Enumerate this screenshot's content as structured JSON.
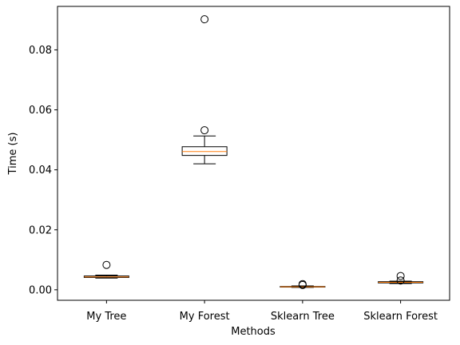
{
  "chart_data": {
    "type": "boxplot",
    "title": "",
    "xlabel": "Methods",
    "ylabel": "Time (s)",
    "ylim": [
      -0.0035,
      0.0945
    ],
    "yticks": [
      0.0,
      0.02,
      0.04,
      0.06,
      0.08
    ],
    "ytick_labels": [
      "0.00",
      "0.02",
      "0.04",
      "0.06",
      "0.08"
    ],
    "grid": false,
    "categories": [
      "My Tree",
      "My Forest",
      "Sklearn Tree",
      "Sklearn Forest"
    ],
    "boxes": [
      {
        "name": "My Tree",
        "whisker_low": 0.0039,
        "q1": 0.0041,
        "median": 0.0043,
        "q3": 0.0046,
        "whisker_high": 0.0049,
        "outliers": [
          0.0083
        ]
      },
      {
        "name": "My Forest",
        "whisker_low": 0.042,
        "q1": 0.0448,
        "median": 0.0461,
        "q3": 0.0477,
        "whisker_high": 0.0513,
        "outliers": [
          0.0532,
          0.0902
        ]
      },
      {
        "name": "Sklearn Tree",
        "whisker_low": 0.0008,
        "q1": 0.0009,
        "median": 0.001,
        "q3": 0.0011,
        "whisker_high": 0.0013,
        "outliers": [
          0.0016,
          0.0019
        ]
      },
      {
        "name": "Sklearn Forest",
        "whisker_low": 0.0021,
        "q1": 0.0023,
        "median": 0.0025,
        "q3": 0.0027,
        "whisker_high": 0.0029,
        "outliers": [
          0.0031,
          0.0046
        ]
      }
    ],
    "colors": {
      "box": "#000000",
      "median": "#ff7f0e",
      "outlier_edge": "#000000"
    }
  }
}
